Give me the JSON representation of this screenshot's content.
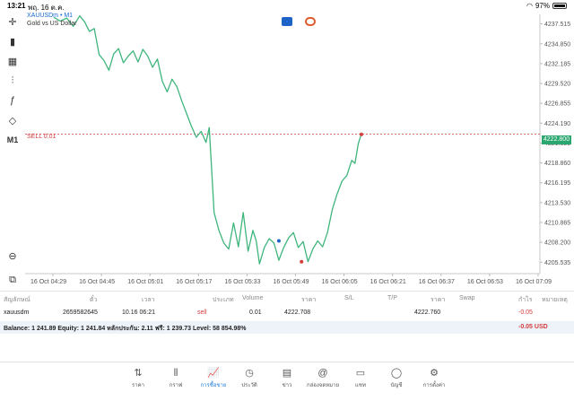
{
  "status": {
    "time": "13:21",
    "date": "พฤ. 16 ต.ค.",
    "battery": "97%"
  },
  "chart": {
    "symbol": "XAUUSDm • M1",
    "description": "Gold vs US Dollar",
    "sell_line_label": "SELL 0.01",
    "current_price_badge": "4222.800",
    "colors": {
      "line": "#3fb57d",
      "sell_line": "#d43b3b",
      "badge": "#2aa76f",
      "buy_marker": "#1e63c7",
      "sell_marker": "#d43b3b"
    }
  },
  "toolbar_left": {
    "icons": [
      "crosshair-icon",
      "candlestick-icon",
      "bar-chart-icon",
      "indicators-icon",
      "function-icon",
      "objects-icon"
    ],
    "timeframe": "M1"
  },
  "table": {
    "headers": [
      "สัญลักษณ์",
      "ตั๋ว",
      "เวลา",
      "ประเภท",
      "Volume",
      "ราคา",
      "S/L",
      "T/P",
      "ราคา",
      "Swap",
      "กำไร",
      "หมายเหตุ"
    ],
    "row": {
      "symbol": "xauusdm",
      "ticket": "2659582645",
      "time": "10.16 06:21",
      "type": "sell",
      "volume": "0.01",
      "open_price": "4222.708",
      "current_price": "4222.760",
      "profit": "-0.05"
    }
  },
  "balance": {
    "text": "Balance: 1 241.89 Equity: 1 241.84 หลักประกัน: 2.11 ฟรี: 1 239.73 Level: 58 854.98%",
    "profit": "-0.05  USD"
  },
  "bottom_nav": [
    {
      "label": "ราคา",
      "icon": "quotes-icon"
    },
    {
      "label": "กราฟ",
      "icon": "chart-icon"
    },
    {
      "label": "การซื้อขาย",
      "icon": "trade-icon",
      "active": true
    },
    {
      "label": "ประวัติ",
      "icon": "history-icon"
    },
    {
      "label": "ข่าว",
      "icon": "news-icon"
    },
    {
      "label": "กล่องจดหมาย",
      "icon": "mailbox-icon"
    },
    {
      "label": "แชท",
      "icon": "chat-icon"
    },
    {
      "label": "บัญชี",
      "icon": "account-icon"
    },
    {
      "label": "การตั้งค่า",
      "icon": "settings-icon"
    }
  ],
  "chart_data": {
    "type": "line",
    "title": "",
    "series_name": "",
    "x_labels": [
      "16 Oct 04:29",
      "16 Oct 04:45",
      "16 Oct 05:01",
      "16 Oct 05:17",
      "16 Oct 05:33",
      "16 Oct 05:49",
      "16 Oct 06:05",
      "16 Oct 06:21",
      "16 Oct 06:37",
      "16 Oct 06:53",
      "16 Oct 07:09"
    ],
    "y_ticks": [
      4237.515,
      4234.85,
      4232.185,
      4229.52,
      4226.855,
      4224.19,
      4221.525,
      4218.86,
      4216.195,
      4213.53,
      4210.865,
      4208.2,
      4205.535
    ],
    "ylim": [
      4204.0,
      4238.8
    ],
    "sell_level": 4222.708,
    "current_price": 4222.8,
    "x_index_range": [
      0,
      190
    ],
    "points": [
      [
        0,
        4238.4
      ],
      [
        4,
        4237.9
      ],
      [
        8,
        4238.3
      ],
      [
        12,
        4237.2
      ],
      [
        16,
        4238.6
      ],
      [
        19,
        4237.8
      ],
      [
        22,
        4236.5
      ],
      [
        25,
        4236.9
      ],
      [
        28,
        4233.4
      ],
      [
        31,
        4232.6
      ],
      [
        34,
        4231.3
      ],
      [
        37,
        4233.5
      ],
      [
        40,
        4234.2
      ],
      [
        43,
        4232.3
      ],
      [
        46,
        4233.2
      ],
      [
        49,
        4233.9
      ],
      [
        52,
        4232.4
      ],
      [
        55,
        4234.1
      ],
      [
        58,
        4233.2
      ],
      [
        61,
        4231.7
      ],
      [
        64,
        4232.8
      ],
      [
        67,
        4229.8
      ],
      [
        70,
        4228.4
      ],
      [
        73,
        4230.1
      ],
      [
        76,
        4229.1
      ],
      [
        79,
        4227.2
      ],
      [
        82,
        4225.5
      ],
      [
        85,
        4223.8
      ],
      [
        88,
        4222.3
      ],
      [
        91,
        4223.1
      ],
      [
        94,
        4221.6
      ],
      [
        96,
        4223.6
      ],
      [
        99,
        4212.2
      ],
      [
        102,
        4209.8
      ],
      [
        105,
        4208.1
      ],
      [
        108,
        4207.3
      ],
      [
        111,
        4210.8
      ],
      [
        114,
        4207.6
      ],
      [
        117,
        4212.2
      ],
      [
        120,
        4207.0
      ],
      [
        123,
        4209.8
      ],
      [
        125,
        4208.4
      ],
      [
        127,
        4205.3
      ],
      [
        130,
        4207.5
      ],
      [
        133,
        4208.7
      ],
      [
        136,
        4208.1
      ],
      [
        139,
        4205.8
      ],
      [
        142,
        4207.5
      ],
      [
        145,
        4208.8
      ],
      [
        148,
        4209.5
      ],
      [
        151,
        4207.5
      ],
      [
        154,
        4208.3
      ],
      [
        157,
        4205.6
      ],
      [
        160,
        4207.3
      ],
      [
        163,
        4208.4
      ],
      [
        166,
        4207.6
      ],
      [
        169,
        4209.5
      ],
      [
        172,
        4212.6
      ],
      [
        175,
        4214.7
      ],
      [
        178,
        4216.4
      ],
      [
        181,
        4217.2
      ],
      [
        184,
        4219.2
      ],
      [
        186,
        4218.8
      ],
      [
        188,
        4221.4
      ],
      [
        190,
        4222.8
      ]
    ],
    "markers": [
      {
        "type": "buy",
        "x": 139,
        "y": 4208.4
      },
      {
        "type": "sell",
        "x": 153,
        "y": 4205.6
      },
      {
        "type": "sell",
        "x": 190,
        "y": 4222.7
      }
    ]
  }
}
